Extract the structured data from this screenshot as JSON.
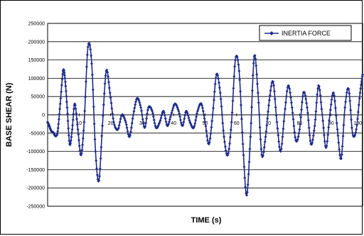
{
  "chart_data": {
    "type": "line",
    "title": "",
    "xlabel": "TIME (s)",
    "ylabel": "BASE SHEAR  (N)",
    "xlim": [
      0,
      100
    ],
    "ylim": [
      -250000,
      250000
    ],
    "x_tick_labels": [
      "10",
      "20",
      "30",
      "40",
      "50",
      "60",
      "70",
      "80",
      "90",
      "100"
    ],
    "x_tick_values": [
      10,
      20,
      30,
      40,
      50,
      60,
      70,
      80,
      90,
      100
    ],
    "y_tick_labels": [
      "250000",
      "200000",
      "150000",
      "100000",
      "50000",
      "0",
      "-50000",
      "-100000",
      "-150000",
      "-200000",
      "-250000"
    ],
    "y_tick_values": [
      250000,
      200000,
      150000,
      100000,
      50000,
      0,
      -50000,
      -100000,
      -150000,
      -200000,
      -250000
    ],
    "grid": "horizontal",
    "legend_position": "top-right",
    "series": [
      {
        "name": "INERTIA FORCE",
        "color": "#1f2a8a",
        "marker": "diamond",
        "x": [
          0,
          0.5,
          1.2,
          1.8,
          2.5,
          3.2,
          4,
          4.9,
          5.5,
          6.2,
          7,
          7.8,
          8.6,
          9.6,
          10.6,
          11.6,
          12.8,
          14,
          15.2,
          16.3,
          17.4,
          18.6,
          19.8,
          21,
          22.3,
          23.6,
          24.8,
          26,
          27.2,
          28.4,
          29.6,
          30.8,
          32,
          33.2,
          34.4,
          35.6,
          36.8,
          38,
          39.2,
          40.4,
          41.6,
          42.8,
          44,
          45.2,
          46.4,
          47.6,
          48.8,
          50,
          51.2,
          52.4,
          53.6,
          54.8,
          56,
          57.2,
          58.4,
          59.6,
          60.8,
          62,
          63.2,
          64.4,
          65.6,
          66.8,
          68,
          69.2,
          70.4,
          71.6,
          72.8,
          74,
          75.2,
          76.4,
          77.6,
          78.8,
          80,
          81.2,
          82.4,
          83.6,
          84.8,
          86,
          87.2,
          88.4,
          89.6,
          90.8,
          92,
          93.2,
          94.4,
          95.6,
          96.8,
          98,
          99.2,
          100
        ],
        "values": [
          -20000,
          -30000,
          -45000,
          -48000,
          -58000,
          -45000,
          30000,
          120000,
          100000,
          20000,
          -80000,
          -40000,
          30000,
          -40000,
          -110000,
          -20000,
          185000,
          140000,
          -100000,
          -180000,
          -30000,
          120000,
          60000,
          -20000,
          -40000,
          0,
          -20000,
          -60000,
          0,
          45000,
          20000,
          -35000,
          20000,
          10000,
          -35000,
          -20000,
          10000,
          -30000,
          0,
          30000,
          10000,
          -30000,
          10000,
          -20000,
          -35000,
          10000,
          30000,
          -20000,
          -80000,
          0,
          110000,
          60000,
          -60000,
          -110000,
          -20000,
          150000,
          120000,
          -80000,
          -220000,
          -60000,
          160000,
          60000,
          -110000,
          -60000,
          40000,
          90000,
          -20000,
          -100000,
          0,
          80000,
          20000,
          -70000,
          -40000,
          60000,
          20000,
          -80000,
          -30000,
          80000,
          0,
          -90000,
          0,
          60000,
          -40000,
          -120000,
          20000,
          70000,
          -50000,
          -40000,
          60000,
          110000
        ]
      }
    ]
  }
}
